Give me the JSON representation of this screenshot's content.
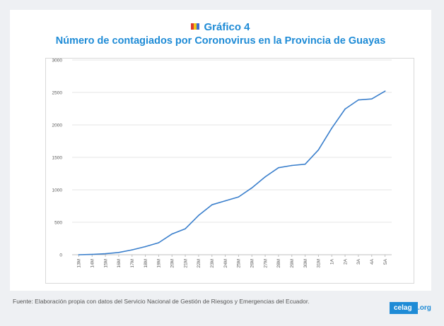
{
  "header": {
    "title": "Gráfico 4",
    "subtitle": "Número de contagiados por Coronovirus en la Provincia de Guayas"
  },
  "footer": {
    "source": "Fuente: Elaboración propia con datos del Servicio Nacional de Gestión de Riesgos y Emergencias del Ecuador."
  },
  "logo": {
    "main": "celag",
    "suffix": ".org"
  },
  "colors": {
    "accent": "#1e8bd6",
    "line": "#3a7fcc",
    "grid": "#e6e6e6"
  },
  "chart_data": {
    "type": "line",
    "title": "",
    "xlabel": "",
    "ylabel": "",
    "ylim": [
      0,
      3000
    ],
    "yticks": [
      0,
      500,
      1000,
      1500,
      2000,
      2500,
      3000
    ],
    "grid": true,
    "categories": [
      "13M",
      "14M",
      "15M",
      "16M",
      "17M",
      "18M",
      "19M",
      "20M",
      "21M",
      "22M",
      "23M",
      "24M",
      "25M",
      "26M",
      "27M",
      "28M",
      "29M",
      "30M",
      "31M",
      "1A",
      "2A",
      "3A",
      "4A",
      "5A"
    ],
    "series": [
      {
        "values": [
          0,
          5,
          15,
          35,
          75,
          125,
          185,
          320,
          400,
          605,
          770,
          830,
          890,
          1030,
          1200,
          1340,
          1375,
          1395,
          1615,
          1950,
          2245,
          2385,
          2400,
          2520
        ]
      }
    ]
  }
}
